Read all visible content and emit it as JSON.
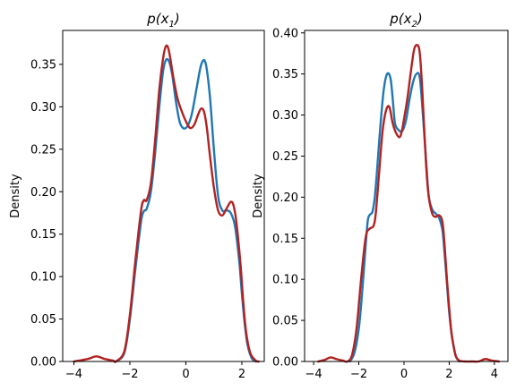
{
  "colors": {
    "series_blue": "#1f77b4",
    "series_red": "#b22222"
  },
  "chart_data": [
    {
      "type": "line",
      "title_main": "p(x",
      "title_sub": "1",
      "title_close": ")",
      "xlabel": "",
      "ylabel": "Density",
      "xlim": [
        -4.4,
        2.8
      ],
      "ylim": [
        0,
        0.39
      ],
      "xticks": [
        -4,
        -2,
        0,
        2
      ],
      "xtick_labels": [
        "−4",
        "−2",
        "0",
        "2"
      ],
      "yticks": [
        0,
        0.05,
        0.1,
        0.15,
        0.2,
        0.25,
        0.3,
        0.35
      ],
      "ytick_labels": [
        "0.00",
        "0.05",
        "0.10",
        "0.15",
        "0.20",
        "0.25",
        "0.30",
        "0.35"
      ],
      "grid": false,
      "series": [
        {
          "color": "#1f77b4",
          "x": [
            -2.5,
            -2.2,
            -2.0,
            -1.8,
            -1.6,
            -1.5,
            -1.4,
            -1.25,
            -1.1,
            -0.95,
            -0.8,
            -0.65,
            -0.5,
            -0.35,
            -0.2,
            0.0,
            0.2,
            0.4,
            0.55,
            0.7,
            0.85,
            1.0,
            1.15,
            1.3,
            1.45,
            1.6,
            1.75,
            1.9,
            2.0,
            2.1,
            2.2,
            2.35,
            2.5
          ],
          "y": [
            0.0,
            0.01,
            0.05,
            0.11,
            0.165,
            0.177,
            0.18,
            0.2,
            0.245,
            0.3,
            0.345,
            0.356,
            0.34,
            0.305,
            0.28,
            0.275,
            0.29,
            0.325,
            0.35,
            0.352,
            0.315,
            0.25,
            0.195,
            0.178,
            0.178,
            0.175,
            0.16,
            0.12,
            0.08,
            0.045,
            0.02,
            0.004,
            0.0
          ]
        },
        {
          "color": "#b22222",
          "x": [
            -4.0,
            -3.5,
            -3.2,
            -2.9,
            -2.6,
            -2.5,
            -2.2,
            -2.0,
            -1.8,
            -1.6,
            -1.5,
            -1.4,
            -1.25,
            -1.1,
            -0.95,
            -0.8,
            -0.7,
            -0.6,
            -0.45,
            -0.3,
            -0.15,
            0.0,
            0.15,
            0.3,
            0.45,
            0.55,
            0.65,
            0.75,
            0.85,
            1.0,
            1.15,
            1.3,
            1.45,
            1.6,
            1.7,
            1.8,
            1.95,
            2.05,
            2.15,
            2.3,
            2.5,
            2.6
          ],
          "y": [
            0.0,
            0.003,
            0.006,
            0.003,
            0.001,
            0.0,
            0.012,
            0.055,
            0.12,
            0.178,
            0.19,
            0.19,
            0.21,
            0.26,
            0.32,
            0.36,
            0.372,
            0.365,
            0.335,
            0.31,
            0.295,
            0.283,
            0.275,
            0.279,
            0.292,
            0.298,
            0.294,
            0.275,
            0.245,
            0.205,
            0.178,
            0.172,
            0.18,
            0.188,
            0.184,
            0.165,
            0.115,
            0.07,
            0.035,
            0.01,
            0.001,
            0.0
          ]
        }
      ]
    },
    {
      "type": "line",
      "title_main": "p(x",
      "title_sub": "2",
      "title_close": ")",
      "xlabel": "",
      "ylabel": "Density",
      "xlim": [
        -4.4,
        4.6
      ],
      "ylim": [
        0,
        0.403
      ],
      "xticks": [
        -4,
        -2,
        0,
        2,
        4
      ],
      "xtick_labels": [
        "−4",
        "−2",
        "0",
        "2",
        "4"
      ],
      "yticks": [
        0,
        0.05,
        0.1,
        0.15,
        0.2,
        0.25,
        0.3,
        0.35,
        0.4
      ],
      "ytick_labels": [
        "0.00",
        "0.05",
        "0.10",
        "0.15",
        "0.20",
        "0.25",
        "0.30",
        "0.35",
        "0.40"
      ],
      "grid": false,
      "series": [
        {
          "color": "#1f77b4",
          "x": [
            -2.4,
            -2.2,
            -2.0,
            -1.85,
            -1.7,
            -1.6,
            -1.5,
            -1.4,
            -1.3,
            -1.2,
            -1.05,
            -0.9,
            -0.75,
            -0.6,
            -0.5,
            -0.4,
            -0.25,
            -0.1,
            0.0,
            0.1,
            0.25,
            0.4,
            0.55,
            0.7,
            0.85,
            1.0,
            1.1,
            1.25,
            1.4,
            1.55,
            1.7,
            1.8,
            1.9,
            2.0,
            2.1,
            2.2,
            2.3,
            2.45
          ],
          "y": [
            0.0,
            0.01,
            0.04,
            0.085,
            0.14,
            0.172,
            0.179,
            0.182,
            0.198,
            0.23,
            0.285,
            0.33,
            0.35,
            0.345,
            0.32,
            0.29,
            0.282,
            0.28,
            0.285,
            0.295,
            0.32,
            0.34,
            0.35,
            0.345,
            0.295,
            0.235,
            0.2,
            0.185,
            0.18,
            0.175,
            0.16,
            0.13,
            0.095,
            0.06,
            0.035,
            0.018,
            0.006,
            0.0
          ]
        },
        {
          "color": "#b22222",
          "x": [
            -3.8,
            -3.5,
            -3.25,
            -3.0,
            -2.7,
            -2.5,
            -2.3,
            -2.1,
            -1.9,
            -1.75,
            -1.65,
            -1.5,
            -1.35,
            -1.25,
            -1.1,
            -0.95,
            -0.8,
            -0.65,
            -0.5,
            -0.35,
            -0.2,
            -0.1,
            0.0,
            0.15,
            0.3,
            0.45,
            0.6,
            0.7,
            0.8,
            0.9,
            1.0,
            1.1,
            1.25,
            1.4,
            1.55,
            1.7,
            1.8,
            1.9,
            2.0,
            2.1,
            2.2,
            2.3,
            2.45,
            2.7,
            3.0,
            3.3,
            3.6,
            3.9,
            4.2
          ],
          "y": [
            0.0,
            0.002,
            0.005,
            0.003,
            0.001,
            0.0,
            0.008,
            0.04,
            0.1,
            0.14,
            0.157,
            0.162,
            0.165,
            0.18,
            0.23,
            0.28,
            0.305,
            0.31,
            0.29,
            0.278,
            0.273,
            0.28,
            0.295,
            0.32,
            0.352,
            0.38,
            0.385,
            0.375,
            0.335,
            0.28,
            0.23,
            0.2,
            0.18,
            0.176,
            0.178,
            0.17,
            0.14,
            0.1,
            0.065,
            0.035,
            0.018,
            0.006,
            0.001,
            0.0,
            0.0,
            0.0,
            0.003,
            0.001,
            0.0
          ]
        }
      ]
    }
  ]
}
